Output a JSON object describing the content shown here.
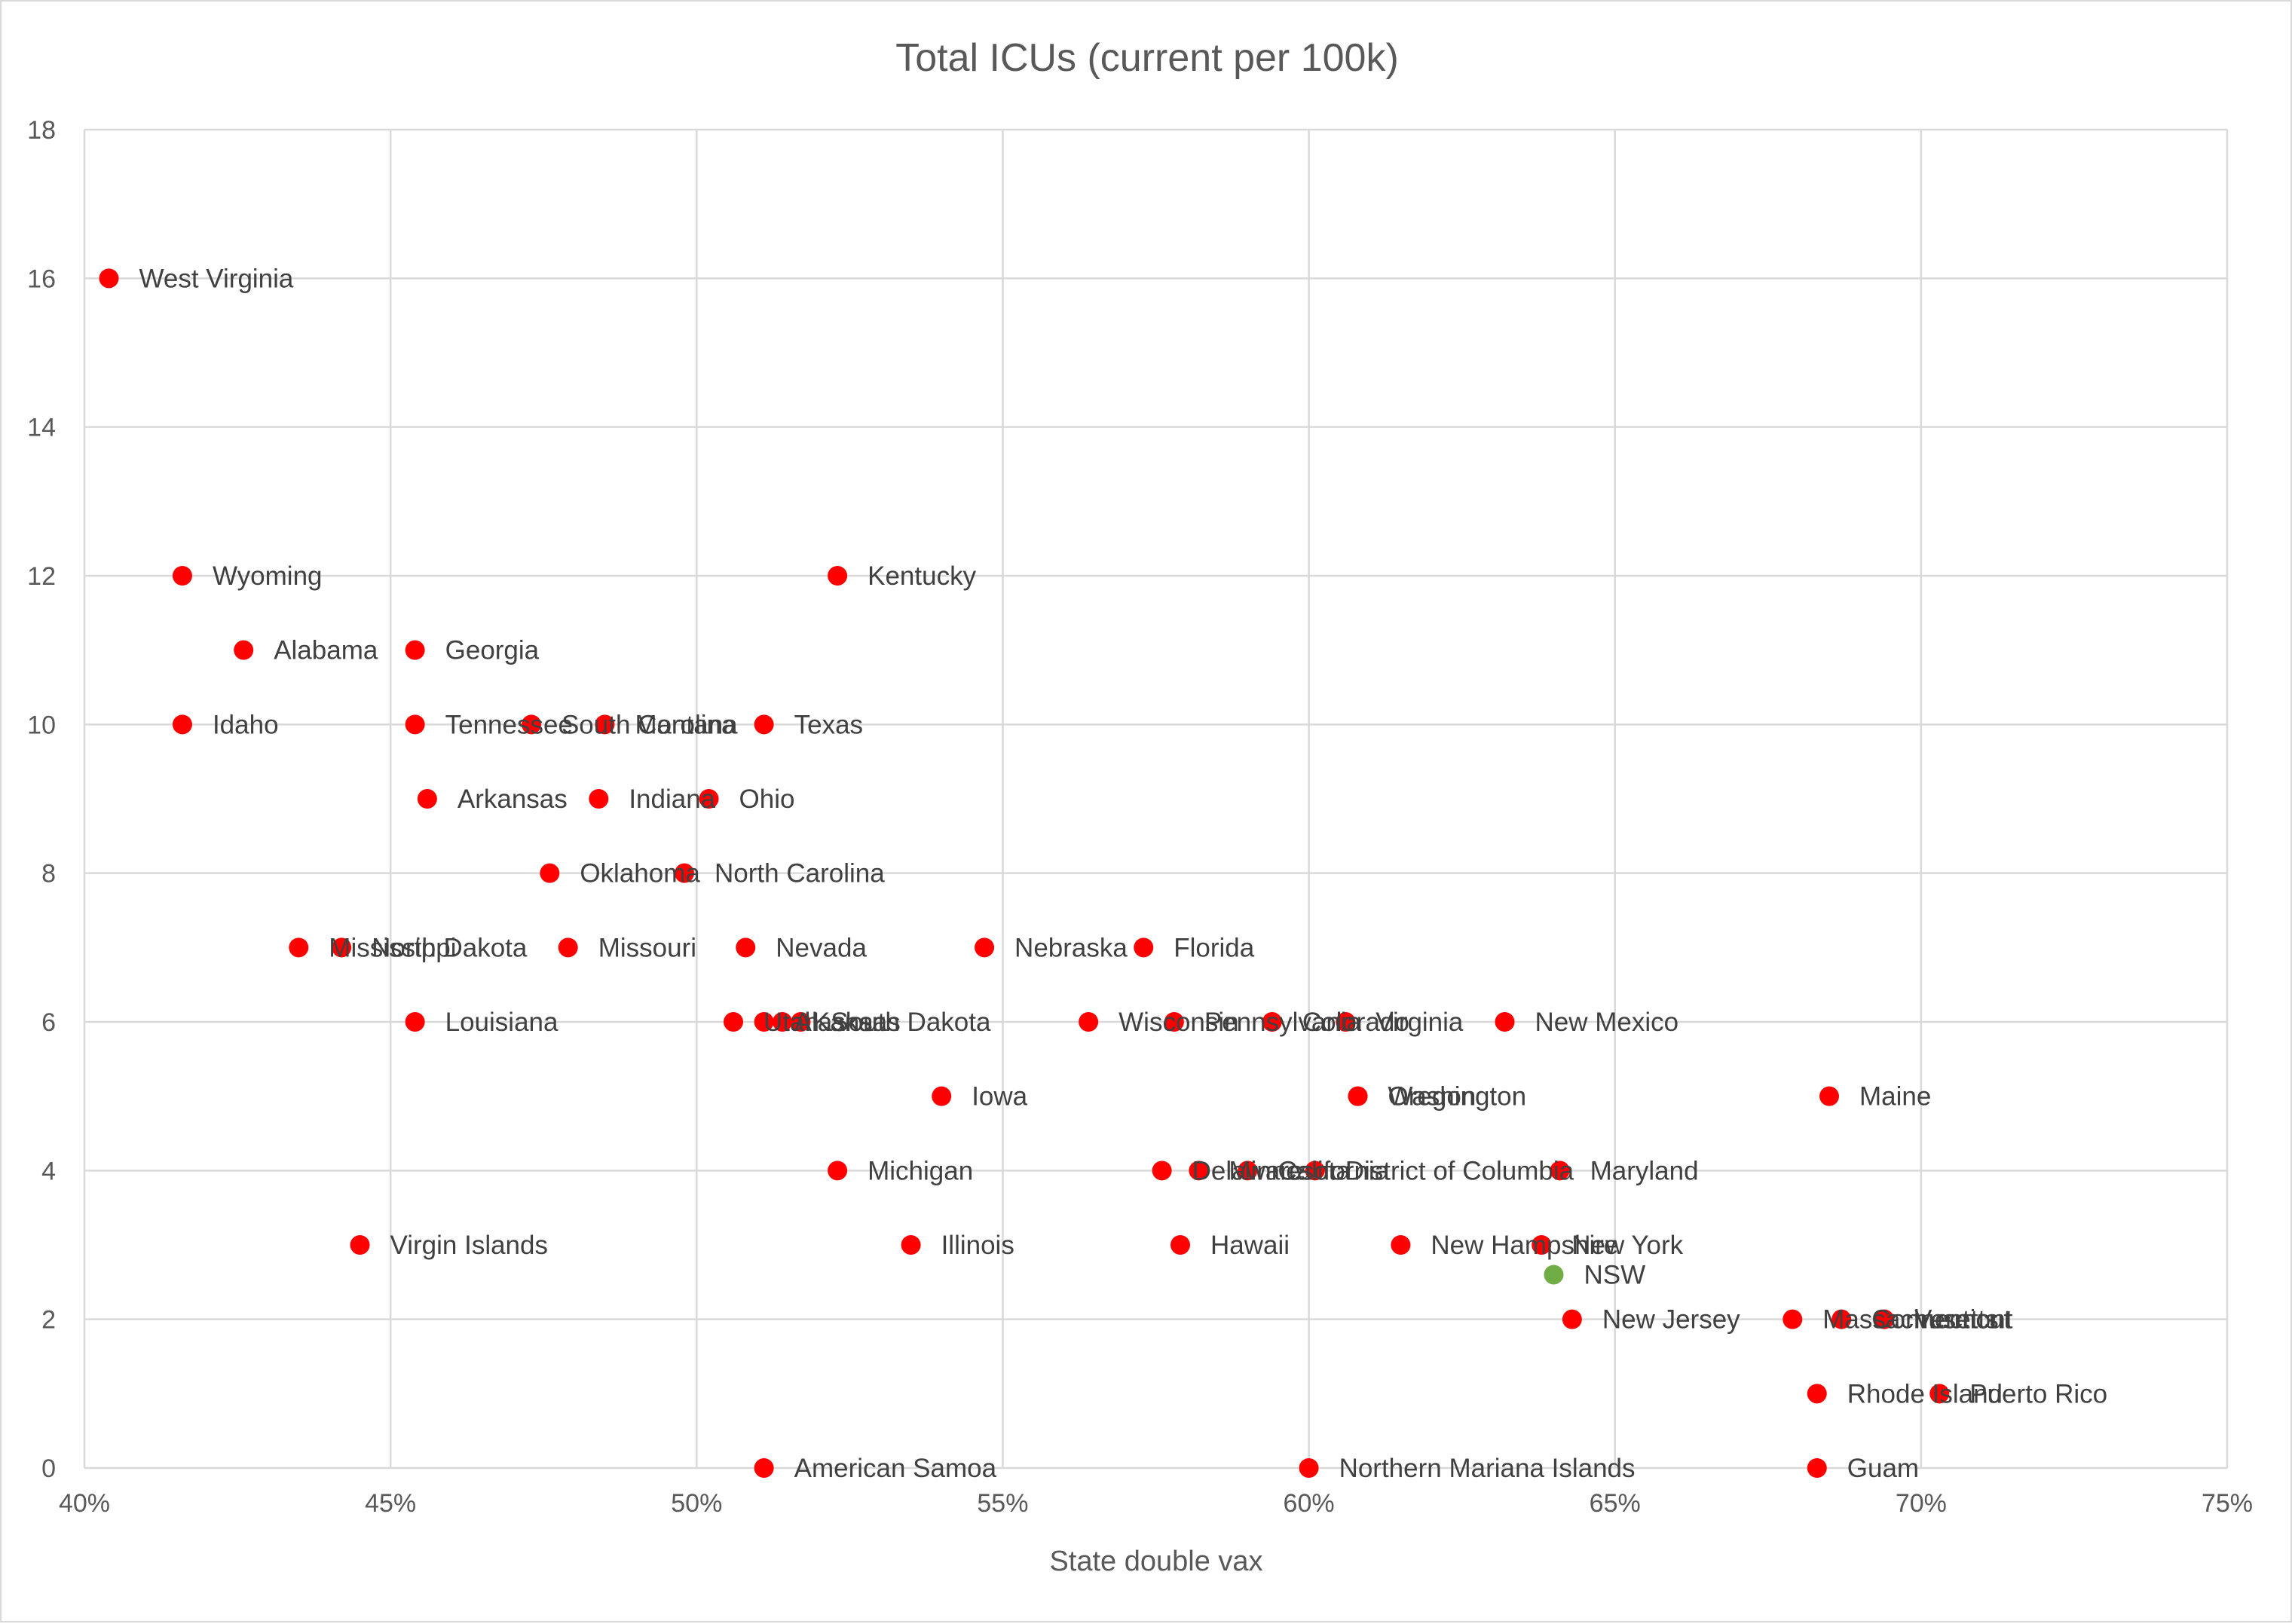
{
  "chart_data": {
    "type": "scatter",
    "title": "Total ICUs (current per 100k)",
    "xlabel": "State double vax",
    "ylabel": "",
    "xlim": [
      0.4,
      0.75
    ],
    "ylim": [
      0,
      18
    ],
    "x_ticks": [
      0.4,
      0.45,
      0.5,
      0.55,
      0.6,
      0.65,
      0.7,
      0.75
    ],
    "x_tick_labels": [
      "40%",
      "45%",
      "50%",
      "55%",
      "60%",
      "65%",
      "70%",
      "75%"
    ],
    "y_ticks": [
      0,
      2,
      4,
      6,
      8,
      10,
      12,
      14,
      16,
      18
    ],
    "y_tick_labels": [
      "0",
      "2",
      "4",
      "6",
      "8",
      "10",
      "12",
      "14",
      "16",
      "18"
    ],
    "grid": true,
    "legend": "none",
    "colors": {
      "us_states": "#ff0000",
      "nsw": "#70ad47",
      "grid": "#d9d9d9",
      "text": "#595959"
    },
    "points": [
      {
        "label": "West Virginia",
        "x": 0.404,
        "y": 16,
        "color": "#ff0000"
      },
      {
        "label": "Wyoming",
        "x": 0.416,
        "y": 12,
        "color": "#ff0000"
      },
      {
        "label": "Kentucky",
        "x": 0.523,
        "y": 12,
        "color": "#ff0000"
      },
      {
        "label": "Alabama",
        "x": 0.426,
        "y": 11,
        "color": "#ff0000"
      },
      {
        "label": "Georgia",
        "x": 0.454,
        "y": 11,
        "color": "#ff0000"
      },
      {
        "label": "Idaho",
        "x": 0.416,
        "y": 10,
        "color": "#ff0000"
      },
      {
        "label": "Tennessee",
        "x": 0.454,
        "y": 10,
        "color": "#ff0000"
      },
      {
        "label": "South Carolina",
        "x": 0.473,
        "y": 10,
        "color": "#ff0000"
      },
      {
        "label": "Montana",
        "x": 0.485,
        "y": 10,
        "color": "#ff0000"
      },
      {
        "label": "Texas",
        "x": 0.511,
        "y": 10,
        "color": "#ff0000"
      },
      {
        "label": "Arkansas",
        "x": 0.456,
        "y": 9,
        "color": "#ff0000"
      },
      {
        "label": "Indiana",
        "x": 0.484,
        "y": 9,
        "color": "#ff0000"
      },
      {
        "label": "Ohio",
        "x": 0.502,
        "y": 9,
        "color": "#ff0000"
      },
      {
        "label": "Oklahoma",
        "x": 0.476,
        "y": 8,
        "color": "#ff0000"
      },
      {
        "label": "North Carolina",
        "x": 0.498,
        "y": 8,
        "color": "#ff0000"
      },
      {
        "label": "Mississippi",
        "x": 0.435,
        "y": 7,
        "color": "#ff0000"
      },
      {
        "label": "North Dakota",
        "x": 0.442,
        "y": 7,
        "color": "#ff0000"
      },
      {
        "label": "Missouri",
        "x": 0.479,
        "y": 7,
        "color": "#ff0000"
      },
      {
        "label": "Nevada",
        "x": 0.508,
        "y": 7,
        "color": "#ff0000"
      },
      {
        "label": "Nebraska",
        "x": 0.547,
        "y": 7,
        "color": "#ff0000"
      },
      {
        "label": "Florida",
        "x": 0.573,
        "y": 7,
        "color": "#ff0000"
      },
      {
        "label": "Louisiana",
        "x": 0.454,
        "y": 6,
        "color": "#ff0000"
      },
      {
        "label": "Utah",
        "x": 0.506,
        "y": 6,
        "color": "#ff0000"
      },
      {
        "label": "Alaska",
        "x": 0.511,
        "y": 6,
        "color": "#ff0000"
      },
      {
        "label": "Kansas",
        "x": 0.514,
        "y": 6,
        "color": "#ff0000"
      },
      {
        "label": "South Dakota",
        "x": 0.517,
        "y": 6,
        "color": "#ff0000"
      },
      {
        "label": "Wisconsin",
        "x": 0.564,
        "y": 6,
        "color": "#ff0000"
      },
      {
        "label": "Pennsylvania",
        "x": 0.578,
        "y": 6,
        "color": "#ff0000"
      },
      {
        "label": "Colorado",
        "x": 0.594,
        "y": 6,
        "color": "#ff0000"
      },
      {
        "label": "Virginia",
        "x": 0.606,
        "y": 6,
        "color": "#ff0000"
      },
      {
        "label": "New Mexico",
        "x": 0.632,
        "y": 6,
        "color": "#ff0000"
      },
      {
        "label": "Iowa",
        "x": 0.54,
        "y": 5,
        "color": "#ff0000"
      },
      {
        "label": "Oregon",
        "x": 0.608,
        "y": 5,
        "color": "#ff0000"
      },
      {
        "label": "Washington",
        "x": 0.608,
        "y": 5,
        "color": "#ff0000"
      },
      {
        "label": "Maine",
        "x": 0.685,
        "y": 5,
        "color": "#ff0000"
      },
      {
        "label": "Michigan",
        "x": 0.523,
        "y": 4,
        "color": "#ff0000"
      },
      {
        "label": "Delaware",
        "x": 0.576,
        "y": 4,
        "color": "#ff0000"
      },
      {
        "label": "Minnesota",
        "x": 0.582,
        "y": 4,
        "color": "#ff0000"
      },
      {
        "label": "California",
        "x": 0.59,
        "y": 4,
        "color": "#ff0000"
      },
      {
        "label": "District of Columbia",
        "x": 0.601,
        "y": 4,
        "color": "#ff0000"
      },
      {
        "label": "Maryland",
        "x": 0.641,
        "y": 4,
        "color": "#ff0000"
      },
      {
        "label": "Virgin Islands",
        "x": 0.445,
        "y": 3,
        "color": "#ff0000"
      },
      {
        "label": "Illinois",
        "x": 0.535,
        "y": 3,
        "color": "#ff0000"
      },
      {
        "label": "Hawaii",
        "x": 0.579,
        "y": 3,
        "color": "#ff0000"
      },
      {
        "label": "New Hampshire",
        "x": 0.615,
        "y": 3,
        "color": "#ff0000"
      },
      {
        "label": "New York",
        "x": 0.638,
        "y": 3,
        "color": "#ff0000"
      },
      {
        "label": "NSW",
        "x": 0.64,
        "y": 2.6,
        "color": "#70ad47"
      },
      {
        "label": "New Jersey",
        "x": 0.643,
        "y": 2,
        "color": "#ff0000"
      },
      {
        "label": "Massachusetts",
        "x": 0.679,
        "y": 2,
        "color": "#ff0000"
      },
      {
        "label": "Connecticut",
        "x": 0.687,
        "y": 2,
        "color": "#ff0000"
      },
      {
        "label": "Vermont",
        "x": 0.694,
        "y": 2,
        "color": "#ff0000"
      },
      {
        "label": "Rhode Island",
        "x": 0.683,
        "y": 1,
        "color": "#ff0000"
      },
      {
        "label": "Puerto Rico",
        "x": 0.703,
        "y": 1,
        "color": "#ff0000"
      },
      {
        "label": "American Samoa",
        "x": 0.511,
        "y": 0,
        "color": "#ff0000"
      },
      {
        "label": "Northern Mariana Islands",
        "x": 0.6,
        "y": 0,
        "color": "#ff0000"
      },
      {
        "label": "Guam",
        "x": 0.683,
        "y": 0,
        "color": "#ff0000"
      }
    ]
  }
}
